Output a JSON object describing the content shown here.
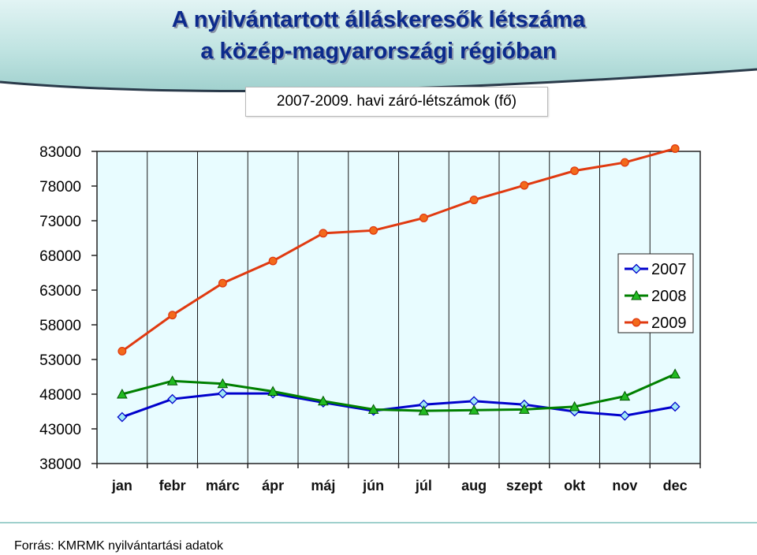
{
  "header": {
    "title_line1": "A nyilvántartott álláskeresők létszáma",
    "title_line2": "a közép-magyarországi régióban",
    "subtitle": "2007-2009.  havi záró-létszámok (fő)"
  },
  "footer": {
    "source": "Forrás: KMRMK nyilvántartási adatok"
  },
  "colors": {
    "banner": "#9fd0cd",
    "title": "#0b2a8c",
    "plot_background": "#e8fcff",
    "series_2007": "#0000cc",
    "series_2008": "#008000",
    "series_2009": "#e03a10"
  },
  "chart_data": {
    "type": "line",
    "title": "2007-2009.  havi záró-létszámok (fő)",
    "xlabel": "",
    "ylabel": "",
    "categories": [
      "jan",
      "febr",
      "márc",
      "ápr",
      "máj",
      "jún",
      "júl",
      "aug",
      "szept",
      "okt",
      "nov",
      "dec"
    ],
    "ylim": [
      38000,
      83000
    ],
    "yticks": [
      38000,
      43000,
      48000,
      53000,
      58000,
      63000,
      68000,
      73000,
      78000,
      83000
    ],
    "grid": "vertical",
    "legend": "right",
    "series": [
      {
        "name": "2007",
        "marker": "diamond",
        "color": "#0000cc",
        "marker_fill": "#9ee7f5",
        "values": [
          44700,
          47300,
          48100,
          48100,
          46800,
          45600,
          46500,
          47000,
          46500,
          45500,
          44900,
          46200
        ]
      },
      {
        "name": "2008",
        "marker": "triangle",
        "color": "#008000",
        "marker_fill": "#22bb22",
        "values": [
          48000,
          49900,
          49500,
          48400,
          47000,
          45800,
          45600,
          45700,
          45800,
          46200,
          47700,
          50900
        ]
      },
      {
        "name": "2009",
        "marker": "circle",
        "color": "#e03a10",
        "marker_fill": "#f26a1b",
        "values": [
          54200,
          59400,
          64000,
          67200,
          71200,
          71600,
          73400,
          76000,
          78100,
          80200,
          81400,
          83400
        ]
      }
    ]
  }
}
